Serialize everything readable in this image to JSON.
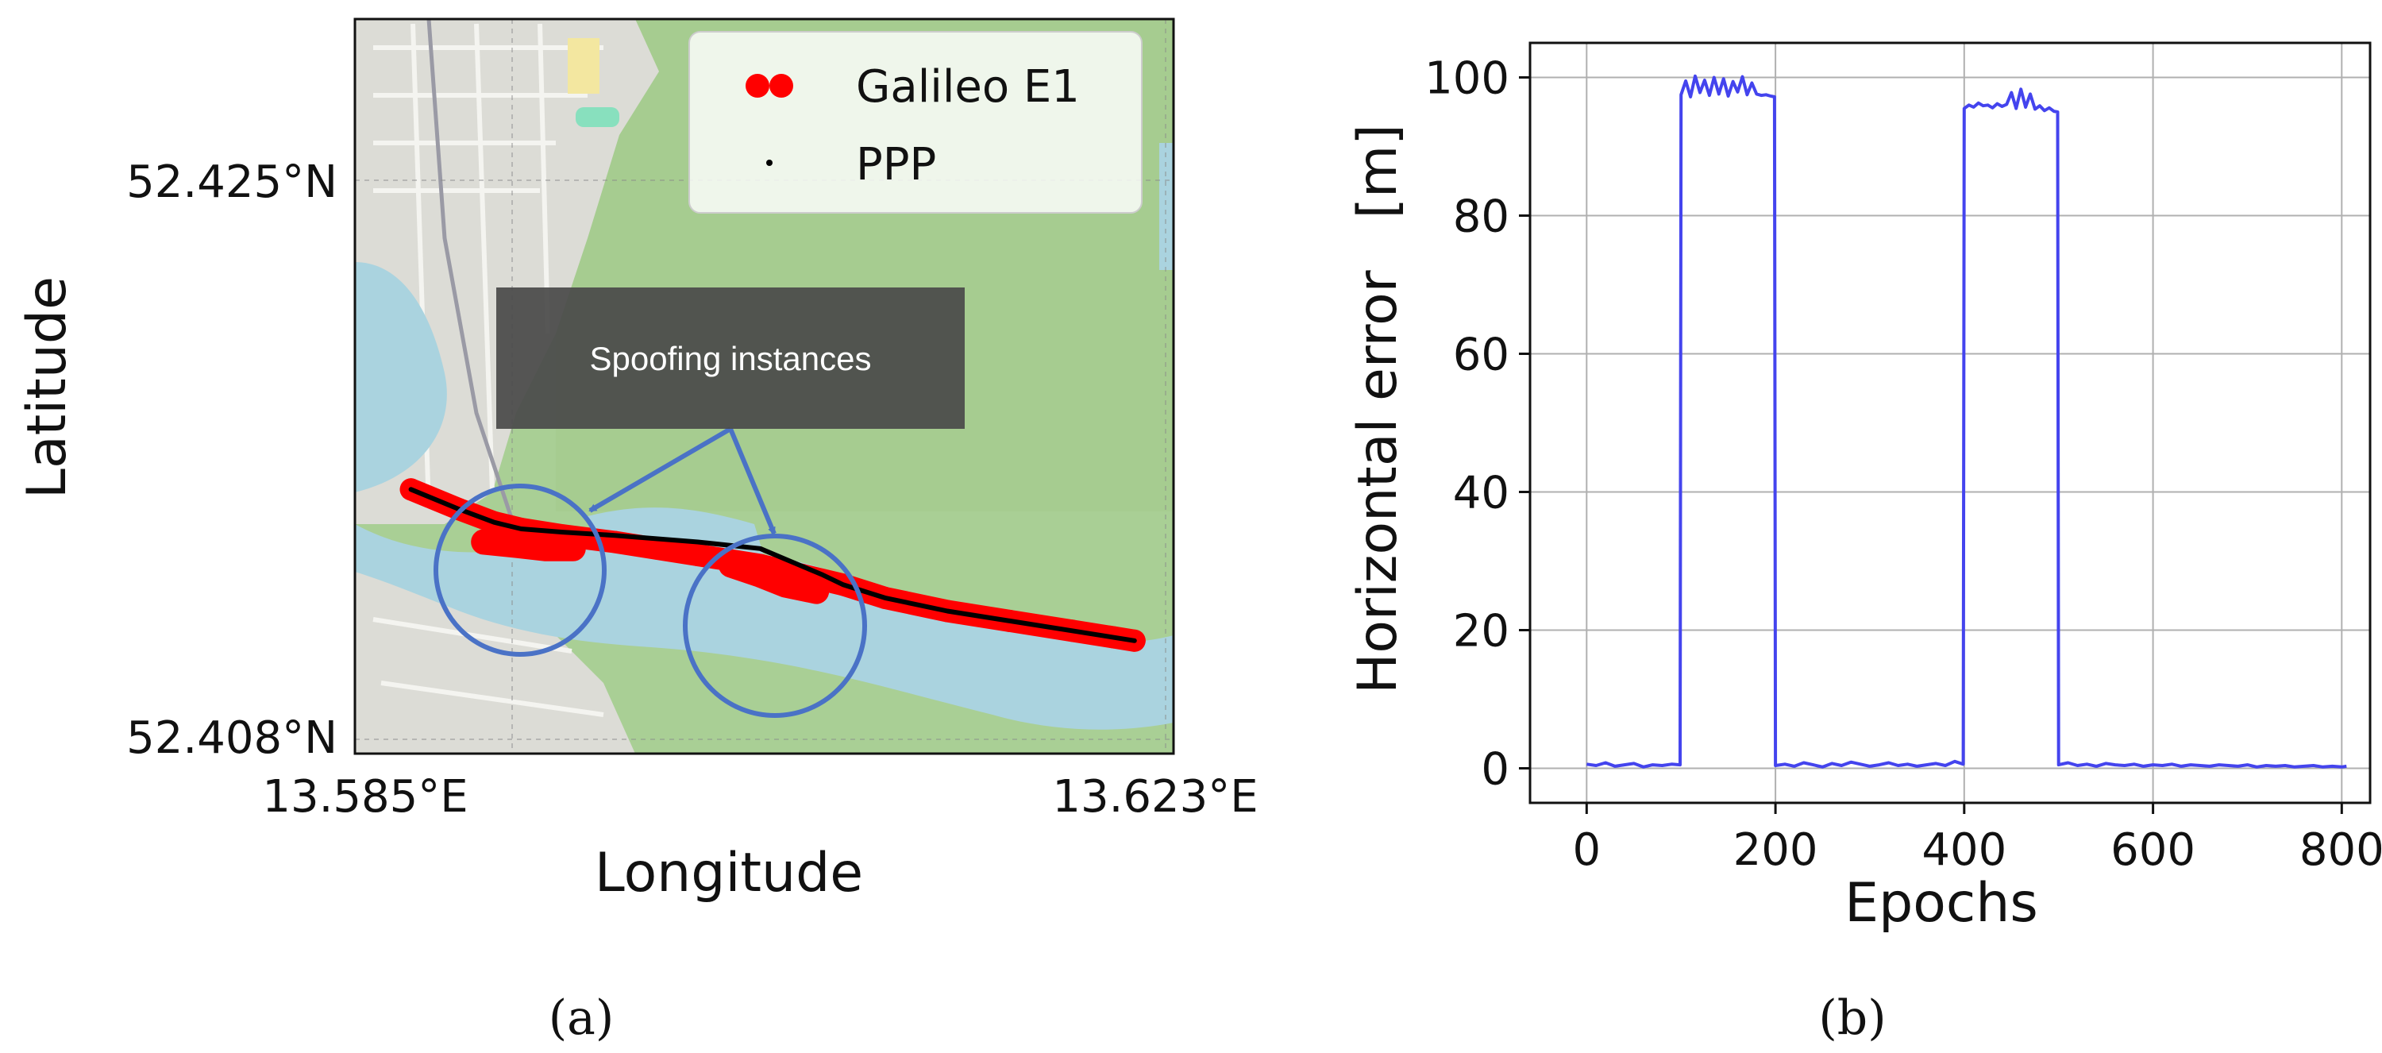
{
  "colors": {
    "map_land": "#a9cf95",
    "map_water": "#aad3df",
    "map_urban": "#dcdcd6",
    "galileo": "#ff0000",
    "ppp": "#000000",
    "spoof_circle": "#4a72c6",
    "error_line": "#4444ee"
  },
  "panel_a": {
    "caption": "(a)",
    "legend": {
      "galileo_label": "Galileo E1",
      "ppp_label": "PPP"
    },
    "annotation": "Spoofing instances",
    "map": {
      "lat_ticks": [
        "52.425°N",
        "52.408°N"
      ],
      "lon_ticks": [
        "13.585°E",
        "13.623°E"
      ]
    }
  },
  "panel_b": {
    "caption": "(b)"
  },
  "chart_data": [
    {
      "type": "scatter",
      "xlabel": "Longitude",
      "ylabel": "Latitude",
      "x_tick_labels": [
        "13.585°E",
        "13.623°E"
      ],
      "y_tick_labels": [
        "52.425°N",
        "52.408°N"
      ],
      "legend": "top-right",
      "series": [
        {
          "name": "Galileo E1",
          "points": [
            [
              13.5872,
              52.4156
            ],
            [
              13.5895,
              52.415
            ],
            [
              13.5912,
              52.4146
            ],
            [
              13.5925,
              52.4144
            ],
            [
              13.5945,
              52.4142
            ],
            [
              13.597,
              52.414
            ],
            [
              13.599,
              52.4138
            ],
            [
              13.601,
              52.4136
            ],
            [
              13.604,
              52.4133
            ],
            [
              13.606,
              52.413
            ],
            [
              13.608,
              52.4127
            ],
            [
              13.61,
              52.4123
            ],
            [
              13.613,
              52.4119
            ],
            [
              13.616,
              52.4116
            ],
            [
              13.619,
              52.4113
            ],
            [
              13.621,
              52.4111
            ],
            [
              13.622,
              52.411
            ]
          ],
          "spoofed_segments": [
            [
              [
                13.5907,
                52.414
              ],
              [
                13.5923,
                52.4139
              ],
              [
                13.5937,
                52.4138
              ],
              [
                13.595,
                52.4138
              ]
            ],
            [
              [
                13.6026,
                52.4133
              ],
              [
                13.604,
                52.413
              ],
              [
                13.6052,
                52.4127
              ],
              [
                13.6067,
                52.4125
              ]
            ]
          ]
        },
        {
          "name": "PPP",
          "points": [
            [
              13.5872,
              52.4156
            ],
            [
              13.5895,
              52.415
            ],
            [
              13.5912,
              52.4146
            ],
            [
              13.5925,
              52.4144
            ],
            [
              13.5945,
              52.4143
            ],
            [
              13.597,
              52.4142
            ],
            [
              13.599,
              52.4141
            ],
            [
              13.601,
              52.414
            ],
            [
              13.604,
              52.4138
            ],
            [
              13.6055,
              52.4134
            ],
            [
              13.607,
              52.413
            ],
            [
              13.608,
              52.4127
            ],
            [
              13.61,
              52.4123
            ],
            [
              13.613,
              52.4119
            ],
            [
              13.616,
              52.4116
            ],
            [
              13.619,
              52.4113
            ],
            [
              13.622,
              52.411
            ]
          ]
        }
      ],
      "annotations": [
        "Spoofing instances"
      ]
    },
    {
      "type": "line",
      "xlabel": "Epochs",
      "ylabel": "Horizontal error   [m]",
      "xlim": [
        -60,
        830
      ],
      "ylim": [
        -5,
        105
      ],
      "xticks": [
        0,
        200,
        400,
        600,
        800
      ],
      "yticks": [
        0,
        20,
        40,
        60,
        80,
        100
      ],
      "grid": true,
      "series": [
        {
          "x": [
            0,
            10,
            20,
            30,
            40,
            50,
            60,
            70,
            80,
            90,
            99,
            100,
            105,
            110,
            115,
            120,
            125,
            130,
            135,
            140,
            145,
            150,
            155,
            160,
            165,
            170,
            175,
            180,
            185,
            190,
            195,
            199,
            200,
            210,
            220,
            230,
            240,
            250,
            260,
            270,
            280,
            290,
            300,
            310,
            320,
            330,
            340,
            350,
            360,
            370,
            380,
            390,
            399,
            400,
            405,
            410,
            415,
            420,
            425,
            430,
            435,
            440,
            445,
            450,
            455,
            460,
            465,
            470,
            475,
            480,
            485,
            490,
            495,
            499,
            500,
            510,
            520,
            530,
            540,
            550,
            560,
            570,
            580,
            590,
            600,
            610,
            620,
            630,
            640,
            650,
            660,
            670,
            680,
            690,
            700,
            710,
            720,
            730,
            740,
            750,
            760,
            770,
            780,
            790,
            800,
            805
          ],
          "y": [
            0.6,
            0.4,
            0.8,
            0.3,
            0.5,
            0.7,
            0.2,
            0.5,
            0.4,
            0.6,
            0.5,
            97.5,
            99.5,
            97.2,
            100.2,
            97.8,
            99.6,
            97.4,
            100.0,
            97.6,
            99.8,
            97.3,
            99.4,
            97.9,
            100.1,
            97.5,
            99.2,
            97.6,
            97.4,
            97.5,
            97.3,
            97.2,
            0.4,
            0.6,
            0.3,
            0.8,
            0.5,
            0.2,
            0.7,
            0.4,
            0.9,
            0.6,
            0.3,
            0.5,
            0.8,
            0.4,
            0.6,
            0.3,
            0.5,
            0.7,
            0.4,
            1.0,
            0.6,
            95.5,
            96.0,
            95.7,
            96.3,
            95.9,
            96.0,
            95.6,
            96.2,
            95.8,
            96.1,
            97.8,
            95.5,
            98.3,
            95.7,
            97.6,
            95.4,
            95.9,
            95.2,
            95.6,
            95.1,
            95.0,
            0.5,
            0.8,
            0.4,
            0.6,
            0.3,
            0.7,
            0.5,
            0.4,
            0.6,
            0.3,
            0.5,
            0.4,
            0.6,
            0.3,
            0.5,
            0.4,
            0.3,
            0.5,
            0.4,
            0.3,
            0.5,
            0.2,
            0.4,
            0.3,
            0.4,
            0.2,
            0.3,
            0.4,
            0.2,
            0.3,
            0.2,
            0.3
          ]
        }
      ]
    }
  ]
}
